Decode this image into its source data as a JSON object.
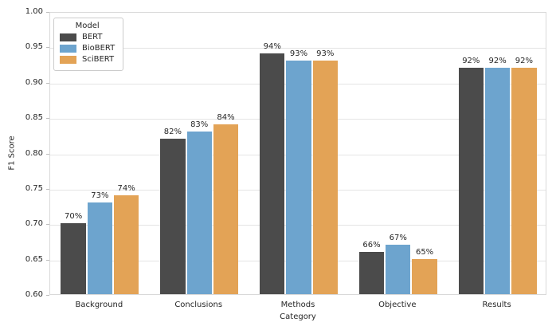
{
  "chart_data": {
    "type": "bar",
    "title": "",
    "xlabel": "Category",
    "ylabel": "F1 Score",
    "ylim": [
      0.6,
      1.0
    ],
    "ytick_step": 0.05,
    "yticks": [
      "1.00",
      "0.95",
      "0.90",
      "0.85",
      "0.80",
      "0.75",
      "0.70",
      "0.65",
      "0.60"
    ],
    "grid": true,
    "legend_title": "Model",
    "legend_position": "upper-left",
    "categories": [
      "Background",
      "Conclusions",
      "Methods",
      "Objective",
      "Results"
    ],
    "series": [
      {
        "name": "BERT",
        "color": "#4b4b4b",
        "values": [
          0.7,
          0.82,
          0.94,
          0.66,
          0.92
        ],
        "labels": [
          "70%",
          "82%",
          "94%",
          "66%",
          "92%"
        ]
      },
      {
        "name": "BioBERT",
        "color": "#6da4ce",
        "values": [
          0.73,
          0.83,
          0.93,
          0.67,
          0.92
        ],
        "labels": [
          "73%",
          "83%",
          "93%",
          "67%",
          "92%"
        ]
      },
      {
        "name": "SciBERT",
        "color": "#e3a356",
        "values": [
          0.74,
          0.84,
          0.93,
          0.65,
          0.92
        ],
        "labels": [
          "74%",
          "84%",
          "93%",
          "65%",
          "92%"
        ]
      }
    ]
  }
}
